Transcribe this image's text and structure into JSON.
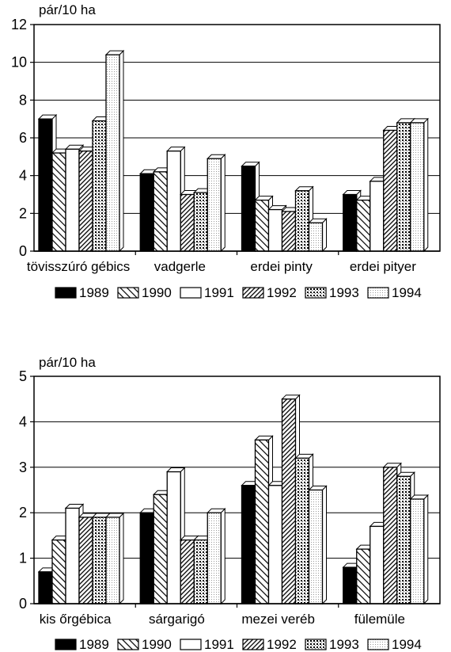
{
  "chart_data": [
    {
      "type": "bar",
      "unit_label": "pár/10 ha",
      "categories": [
        "tövisszúró gébics",
        "vadgerle",
        "erdei pinty",
        "erdei pityer"
      ],
      "series": [
        {
          "name": "1989",
          "values": [
            7.0,
            4.1,
            4.5,
            3.0
          ]
        },
        {
          "name": "1990",
          "values": [
            5.2,
            4.2,
            2.7,
            2.7
          ]
        },
        {
          "name": "1991",
          "values": [
            5.4,
            5.3,
            2.2,
            3.7
          ]
        },
        {
          "name": "1992",
          "values": [
            5.3,
            3.0,
            2.1,
            6.4
          ]
        },
        {
          "name": "1993",
          "values": [
            6.9,
            3.1,
            3.2,
            6.8
          ]
        },
        {
          "name": "1994",
          "values": [
            10.4,
            4.9,
            1.5,
            6.8
          ]
        }
      ],
      "ylim": [
        0,
        12
      ],
      "yticks": [
        "0",
        "2",
        "4",
        "6",
        "8",
        "10",
        "12"
      ],
      "grid": true,
      "legend_placement": "bottom"
    },
    {
      "type": "bar",
      "unit_label": "pár/10 ha",
      "categories": [
        "kis őrgébica",
        "sárgarigó",
        "mezei veréb",
        "fülemüle"
      ],
      "series": [
        {
          "name": "1989",
          "values": [
            0.7,
            2.0,
            2.6,
            0.8
          ]
        },
        {
          "name": "1990",
          "values": [
            1.4,
            2.4,
            3.6,
            1.2
          ]
        },
        {
          "name": "1991",
          "values": [
            2.1,
            2.9,
            2.6,
            1.7
          ]
        },
        {
          "name": "1992",
          "values": [
            1.9,
            1.4,
            4.5,
            3.0
          ]
        },
        {
          "name": "1993",
          "values": [
            1.9,
            1.4,
            3.2,
            2.8
          ]
        },
        {
          "name": "1994",
          "values": [
            1.9,
            2.0,
            2.5,
            2.3
          ]
        }
      ],
      "ylim": [
        0,
        5
      ],
      "yticks": [
        "0",
        "1",
        "2",
        "3",
        "4",
        "5"
      ],
      "grid": true,
      "legend_placement": "bottom"
    }
  ]
}
